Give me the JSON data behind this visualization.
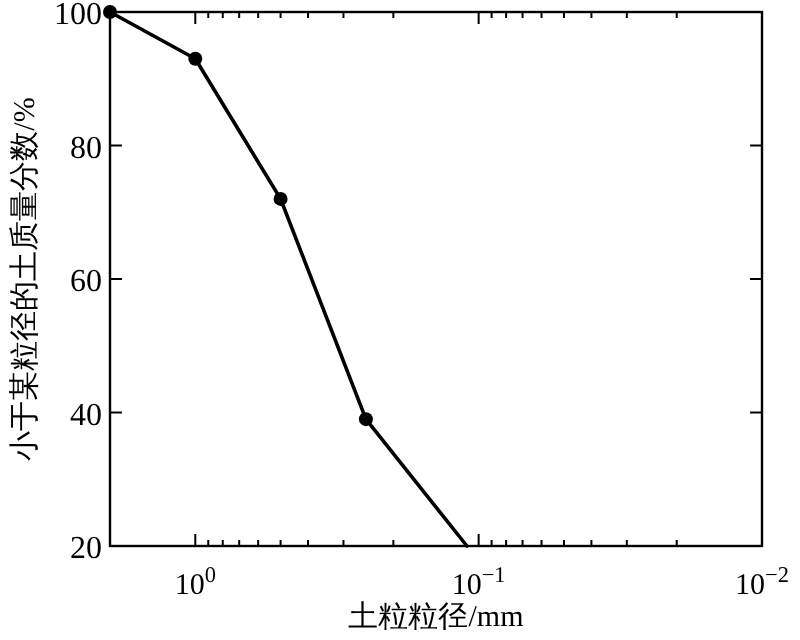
{
  "chart_data": {
    "type": "line",
    "xlabel": "土粒粒径/mm",
    "ylabel": "小于某粒径的土质量分数/%",
    "log": "x",
    "xlim": [
      2,
      0.01
    ],
    "xticks": [
      {
        "value": 1,
        "label": "10$^{0}$"
      },
      {
        "value": 0.1,
        "label": "10$^{−1}$"
      },
      {
        "value": 0.01,
        "label": "10$^{−2}$"
      }
    ],
    "ylim": [
      20,
      100
    ],
    "yticks": [
      20,
      40,
      60,
      80,
      100
    ],
    "grid": false,
    "series": [
      {
        "color": "#000000",
        "marker": "none",
        "line_style": "solid",
        "x": [
          2,
          1,
          0.5,
          0.25,
          0.11
        ],
        "values": [
          100,
          93,
          72,
          39,
          20
        ]
      },
      {
        "type": "scatter",
        "color": "#000000",
        "marker": "circle",
        "x": [
          2,
          1,
          0.5,
          0.25
        ],
        "values": [
          100,
          93,
          72,
          39
        ]
      }
    ]
  }
}
